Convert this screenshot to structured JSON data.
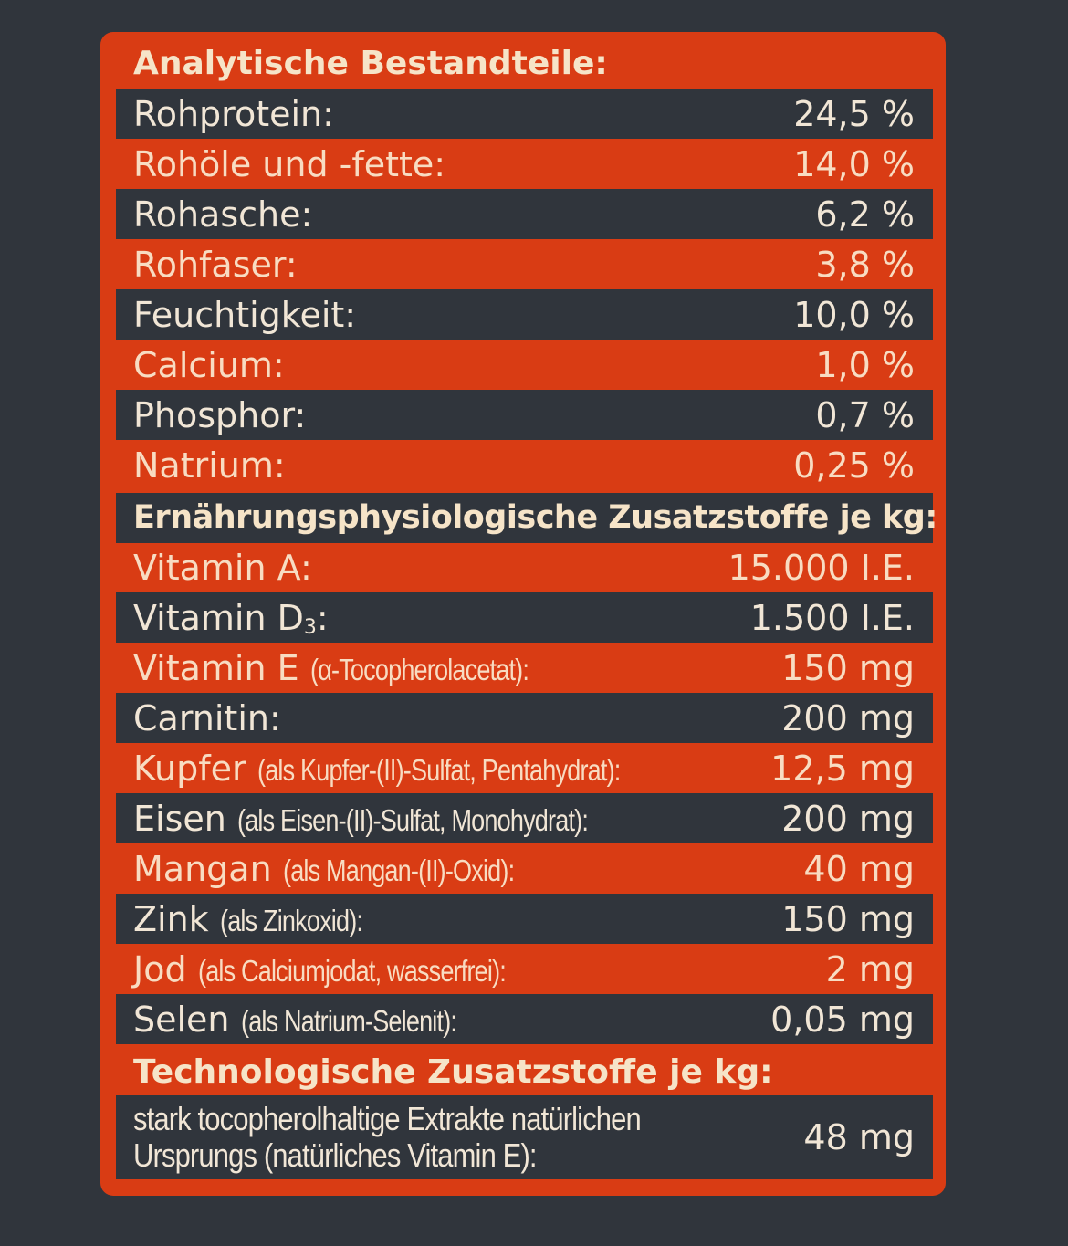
{
  "sections": {
    "analytic": {
      "title": "Analytische Bestandteile:",
      "rows": [
        {
          "label": "Rohprotein:",
          "value": "24,5 %"
        },
        {
          "label": "Rohöle und -fette:",
          "value": "14,0 %"
        },
        {
          "label": "Rohasche:",
          "value": "6,2 %"
        },
        {
          "label": "Rohfaser:",
          "value": "3,8 %"
        },
        {
          "label": "Feuchtigkeit:",
          "value": "10,0 %"
        },
        {
          "label": "Calcium:",
          "value": "1,0 %"
        },
        {
          "label": "Phosphor:",
          "value": "0,7 %"
        },
        {
          "label": "Natrium:",
          "value": "0,25 %"
        }
      ]
    },
    "nutritional": {
      "title": "Ernährungsphysiologische Zusatzstoffe je kg:",
      "rows": [
        {
          "label": "Vitamin A:",
          "detail": "",
          "value": "15.000 I.E."
        },
        {
          "label": "Vitamin D",
          "subscript": "3",
          "label_suffix": ":",
          "detail": "",
          "value": "1.500 I.E."
        },
        {
          "label": "Vitamin E",
          "detail": "(α-Tocopherolacetat):",
          "value": "150 mg"
        },
        {
          "label": "Carnitin:",
          "detail": "",
          "value": "200 mg"
        },
        {
          "label": "Kupfer",
          "detail": "(als Kupfer-(II)-Sulfat, Pentahydrat):",
          "value": "12,5 mg"
        },
        {
          "label": "Eisen",
          "detail": "(als Eisen-(II)-Sulfat, Monohydrat):",
          "value": "200 mg"
        },
        {
          "label": "Mangan",
          "detail": "(als Mangan-(II)-Oxid):",
          "value": "40 mg"
        },
        {
          "label": "Zink",
          "detail": "(als Zinkoxid):",
          "value": "150 mg"
        },
        {
          "label": "Jod",
          "detail": "(als Calciumjodat, wasserfrei):",
          "value": "2 mg"
        },
        {
          "label": "Selen",
          "detail": "(als Natrium-Selenit):",
          "value": "0,05 mg"
        }
      ]
    },
    "technological": {
      "title": "Technologische Zusatzstoffe je kg:",
      "rows": [
        {
          "label": "stark tocopherolhaltige Extrakte natürlichen Ursprungs (natürliches Vitamin E):",
          "value": "48 mg"
        }
      ]
    }
  },
  "colors": {
    "background": "#30353c",
    "panel": "#d93c14",
    "text_light": "#f6e4c8"
  }
}
